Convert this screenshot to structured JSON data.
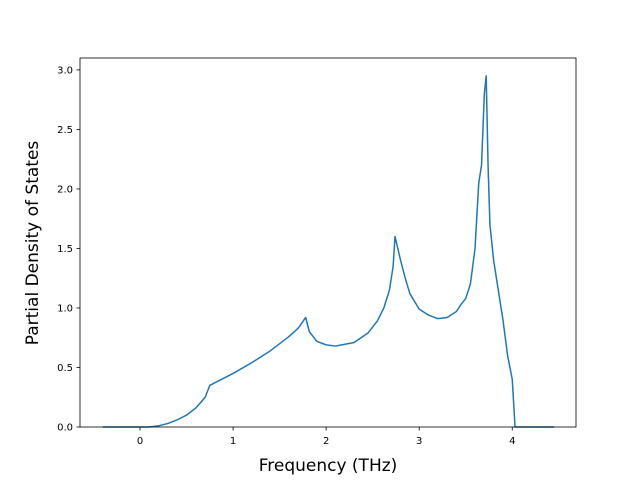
{
  "chart_data": {
    "type": "line",
    "xlabel": "Frequency (THz)",
    "ylabel": "Partial Density of States",
    "x": [
      -0.4,
      0.1,
      0.2,
      0.3,
      0.4,
      0.5,
      0.6,
      0.7,
      0.75,
      0.9,
      1.0,
      1.2,
      1.4,
      1.6,
      1.7,
      1.78,
      1.82,
      1.9,
      2.0,
      2.1,
      2.3,
      2.45,
      2.55,
      2.62,
      2.68,
      2.72,
      2.74,
      2.8,
      2.85,
      2.9,
      3.0,
      3.1,
      3.2,
      3.3,
      3.4,
      3.45,
      3.5,
      3.55,
      3.6,
      3.64,
      3.67,
      3.7,
      3.72,
      3.74,
      3.76,
      3.8,
      3.85,
      3.9,
      3.95,
      4.0,
      4.03,
      4.1,
      4.45
    ],
    "series": [
      {
        "color": "#1f77b4",
        "values": [
          0,
          0,
          0.01,
          0.03,
          0.06,
          0.1,
          0.16,
          0.25,
          0.35,
          0.41,
          0.45,
          0.54,
          0.64,
          0.76,
          0.83,
          0.92,
          0.8,
          0.72,
          0.69,
          0.68,
          0.71,
          0.79,
          0.89,
          1.0,
          1.15,
          1.35,
          1.6,
          1.4,
          1.25,
          1.12,
          0.99,
          0.94,
          0.91,
          0.92,
          0.97,
          1.03,
          1.08,
          1.2,
          1.5,
          2.05,
          2.2,
          2.8,
          2.95,
          2.2,
          1.7,
          1.4,
          1.15,
          0.9,
          0.6,
          0.4,
          0,
          0,
          0
        ]
      }
    ],
    "xlim": [
      -0.645,
      4.685
    ],
    "xticks": [
      0,
      1,
      2,
      3,
      4
    ],
    "ylim": [
      0,
      3.1
    ],
    "yticks": [
      {
        "value": 0,
        "label": "0.0"
      },
      {
        "value": 0.5,
        "label": "0.5"
      },
      {
        "value": 1,
        "label": "1.0"
      },
      {
        "value": 1.5,
        "label": "1.5"
      },
      {
        "value": 2,
        "label": "2.0"
      },
      {
        "value": 2.5,
        "label": "2.5"
      },
      {
        "value": 3,
        "label": "3.0"
      }
    ],
    "grid": false
  }
}
